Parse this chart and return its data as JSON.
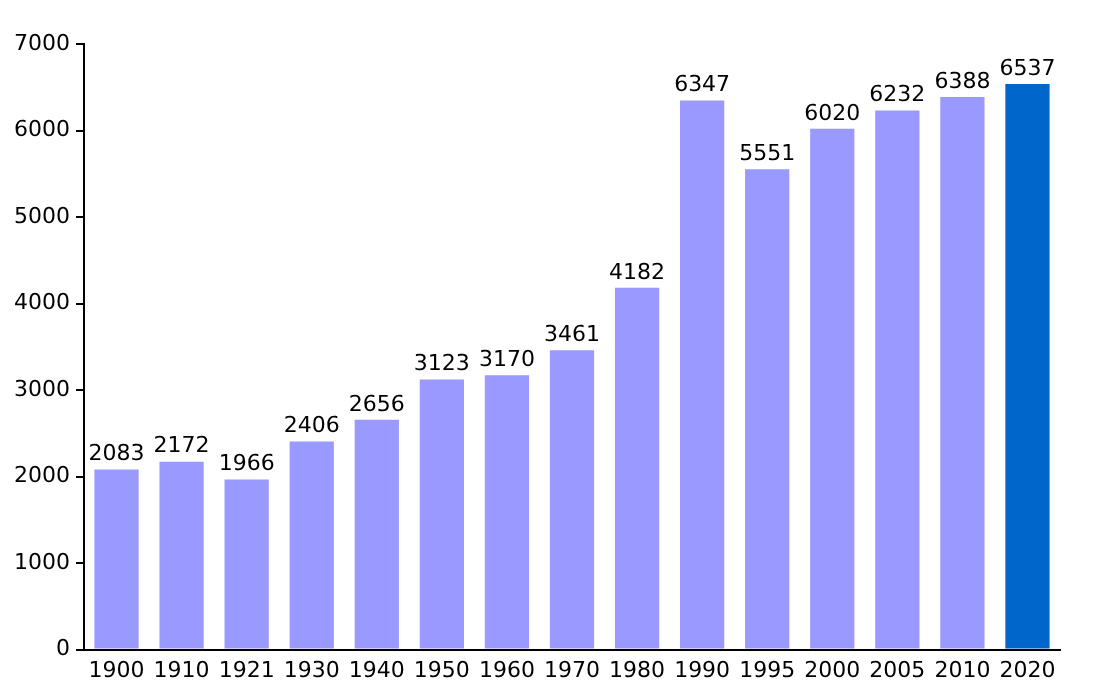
{
  "chart_data": {
    "type": "bar",
    "categories": [
      "1900",
      "1910",
      "1921",
      "1930",
      "1940",
      "1950",
      "1960",
      "1970",
      "1980",
      "1990",
      "1995",
      "2000",
      "2005",
      "2010",
      "2020"
    ],
    "values": [
      2083,
      2172,
      1966,
      2406,
      2656,
      3123,
      3170,
      3461,
      4182,
      6347,
      5551,
      6020,
      6232,
      6388,
      6537
    ],
    "colors": [
      "#9999ff",
      "#9999ff",
      "#9999ff",
      "#9999ff",
      "#9999ff",
      "#9999ff",
      "#9999ff",
      "#9999ff",
      "#9999ff",
      "#9999ff",
      "#9999ff",
      "#9999ff",
      "#9999ff",
      "#9999ff",
      "#0066cc"
    ],
    "ylim": [
      0,
      7000
    ],
    "yticks": [
      0,
      1000,
      2000,
      3000,
      4000,
      5000,
      6000,
      7000
    ],
    "data_labels": true
  }
}
